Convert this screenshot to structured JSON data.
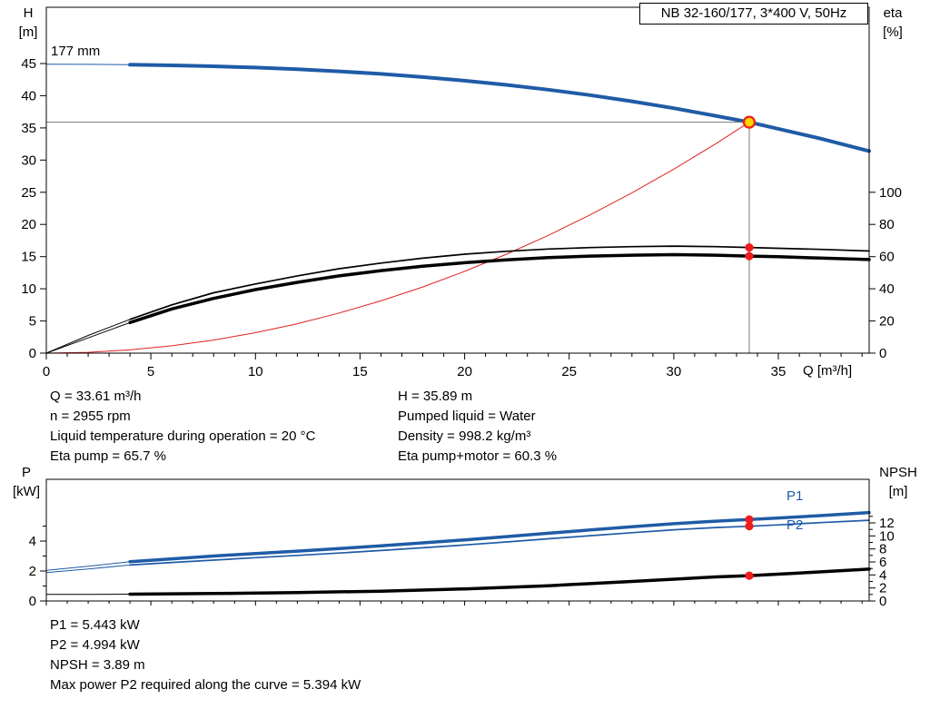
{
  "title_box": {
    "label": "NB 32-160/177, 3*400 V, 50Hz"
  },
  "colors": {
    "blue": "#1f5ba6",
    "black": "#000000",
    "red": "#e02020",
    "marker_red": "#ee1c1c",
    "duty_yellow": "#ffd500",
    "ref": "#7a7a7a",
    "border": "#000000"
  },
  "chart_data": [
    {
      "type": "line",
      "name": "head-efficiency",
      "title": "NB 32-160/177, 3*400 V, 50Hz",
      "x_axis": {
        "label": "Q [m³/h]",
        "min": 0,
        "max": 39.34,
        "ticks": [
          0,
          5,
          10,
          15,
          20,
          25,
          30,
          35
        ],
        "minor_step": 1,
        "show_labels": true
      },
      "y_left": {
        "label": "H [m]",
        "label_line1": "H",
        "label_line2": "[m]",
        "min": 0,
        "max": 45,
        "ticks": [
          0,
          5,
          10,
          15,
          20,
          25,
          30,
          35,
          40,
          45
        ]
      },
      "y_right": {
        "label": "eta [%]",
        "label_line1": "eta",
        "label_line2": "[%]",
        "min": 0,
        "max": 100,
        "ticks": [
          0,
          20,
          40,
          60,
          80,
          100
        ]
      },
      "annotations": {
        "impeller": "177 mm"
      },
      "series": [
        {
          "name": "system-curve",
          "axis": "left",
          "color": "red",
          "width": 1,
          "points": [
            [
              0,
              0
            ],
            [
              2,
              0.13
            ],
            [
              4,
              0.51
            ],
            [
              6,
              1.14
            ],
            [
              8,
              2.03
            ],
            [
              10,
              3.18
            ],
            [
              12,
              4.57
            ],
            [
              14,
              6.23
            ],
            [
              16,
              8.13
            ],
            [
              18,
              10.29
            ],
            [
              20,
              12.71
            ],
            [
              22,
              15.38
            ],
            [
              24,
              18.3
            ],
            [
              26,
              21.48
            ],
            [
              28,
              24.91
            ],
            [
              30,
              28.6
            ],
            [
              32,
              32.53
            ],
            [
              33.61,
              35.89
            ]
          ]
        },
        {
          "name": "eta-pump-curve",
          "axis": "right",
          "color": "black",
          "width": 1.7,
          "thin_until": 4,
          "points": [
            [
              0,
              0
            ],
            [
              2,
              11
            ],
            [
              4,
              21
            ],
            [
              6,
              30
            ],
            [
              8,
              37.5
            ],
            [
              10,
              43
            ],
            [
              12,
              48
            ],
            [
              14,
              52.5
            ],
            [
              16,
              56
            ],
            [
              18,
              59
            ],
            [
              20,
              61.5
            ],
            [
              22,
              63.3
            ],
            [
              24,
              64.7
            ],
            [
              26,
              65.6
            ],
            [
              28,
              66.2
            ],
            [
              30,
              66.5
            ],
            [
              32,
              66.2
            ],
            [
              33.61,
              65.7
            ],
            [
              35,
              65.2
            ],
            [
              37,
              64.5
            ],
            [
              39.34,
              63.5
            ]
          ]
        },
        {
          "name": "eta-pump-motor-curve",
          "axis": "right",
          "color": "black",
          "width": 3.5,
          "thin_until": 4,
          "points": [
            [
              0,
              0
            ],
            [
              2,
              9.5
            ],
            [
              4,
              19
            ],
            [
              6,
              27.5
            ],
            [
              8,
              34
            ],
            [
              10,
              39.5
            ],
            [
              12,
              44
            ],
            [
              14,
              48
            ],
            [
              16,
              51.3
            ],
            [
              18,
              54
            ],
            [
              20,
              56.2
            ],
            [
              22,
              58
            ],
            [
              24,
              59.4
            ],
            [
              26,
              60.3
            ],
            [
              28,
              60.9
            ],
            [
              30,
              61.2
            ],
            [
              32,
              60.9
            ],
            [
              33.61,
              60.3
            ],
            [
              35,
              59.9
            ],
            [
              37,
              59.1
            ],
            [
              39.34,
              58.2
            ]
          ]
        },
        {
          "name": "head-curve",
          "axis": "left",
          "color": "blue",
          "width": 4,
          "thin_until": 4,
          "points": [
            [
              0,
              44.9
            ],
            [
              2,
              44.87
            ],
            [
              4,
              44.81
            ],
            [
              6,
              44.72
            ],
            [
              8,
              44.58
            ],
            [
              10,
              44.38
            ],
            [
              12,
              44.12
            ],
            [
              14,
              43.79
            ],
            [
              16,
              43.39
            ],
            [
              18,
              42.9
            ],
            [
              20,
              42.34
            ],
            [
              22,
              41.69
            ],
            [
              24,
              40.94
            ],
            [
              26,
              40.09
            ],
            [
              28,
              39.13
            ],
            [
              30,
              38.06
            ],
            [
              32,
              36.87
            ],
            [
              33.61,
              35.89
            ],
            [
              35,
              34.86
            ],
            [
              37,
              33.35
            ],
            [
              39.34,
              31.4
            ]
          ]
        }
      ],
      "ref_point": {
        "x": 33.61,
        "y": 35.89
      },
      "markers": [
        {
          "x": 33.61,
          "y": 35.89,
          "axis": "left",
          "style": "duty"
        },
        {
          "x": 33.61,
          "y": 65.7,
          "axis": "right",
          "style": "dot"
        },
        {
          "x": 33.61,
          "y": 60.3,
          "axis": "right",
          "style": "dot"
        }
      ]
    },
    {
      "type": "line",
      "name": "power-npsh",
      "x_axis": {
        "label": "",
        "min": 0,
        "max": 39.34,
        "ticks": [
          0,
          5,
          10,
          15,
          20,
          25,
          30,
          35
        ],
        "minor_step": 1,
        "show_labels": false
      },
      "y_left": {
        "label": "P [kW]",
        "label_line1": "P",
        "label_line2": "[kW]",
        "min": 0,
        "max": 8.12,
        "ticks": [
          0,
          2,
          4
        ],
        "minor": [
          1,
          3,
          5
        ]
      },
      "y_right": {
        "label": "NPSH [m]",
        "label_line1": "NPSH",
        "label_line2": "[m]",
        "min": 0,
        "max": 18.7,
        "ticks": [
          0,
          2,
          4,
          6,
          8,
          10,
          12
        ],
        "minor": [
          1,
          3,
          5,
          7,
          9,
          11,
          13
        ]
      },
      "series": [
        {
          "name": "npsh-curve",
          "axis": "right",
          "color": "black",
          "width": 3.5,
          "thin_until": 4,
          "points": [
            [
              0,
              1.0
            ],
            [
              2,
              1.02
            ],
            [
              4,
              1.05
            ],
            [
              8,
              1.15
            ],
            [
              12,
              1.3
            ],
            [
              16,
              1.5
            ],
            [
              20,
              1.85
            ],
            [
              24,
              2.35
            ],
            [
              28,
              3.0
            ],
            [
              32,
              3.7
            ],
            [
              33.61,
              3.89
            ],
            [
              36,
              4.3
            ],
            [
              39.34,
              4.9
            ]
          ]
        },
        {
          "name": "p2-curve",
          "axis": "left",
          "color": "blue",
          "width": 1.7,
          "thin_until": 4,
          "points": [
            [
              0,
              1.9
            ],
            [
              2,
              2.14
            ],
            [
              4,
              2.4
            ],
            [
              6,
              2.57
            ],
            [
              8,
              2.73
            ],
            [
              10,
              2.89
            ],
            [
              12,
              3.04
            ],
            [
              14,
              3.2
            ],
            [
              16,
              3.37
            ],
            [
              18,
              3.55
            ],
            [
              20,
              3.74
            ],
            [
              22,
              3.94
            ],
            [
              24,
              4.15
            ],
            [
              26,
              4.36
            ],
            [
              28,
              4.56
            ],
            [
              30,
              4.75
            ],
            [
              32,
              4.9
            ],
            [
              33.61,
              4.99
            ],
            [
              35,
              5.08
            ],
            [
              37,
              5.23
            ],
            [
              39.34,
              5.39
            ]
          ]
        },
        {
          "name": "p1-curve",
          "axis": "left",
          "color": "blue",
          "width": 3.5,
          "thin_until": 4,
          "points": [
            [
              0,
              2.05
            ],
            [
              2,
              2.32
            ],
            [
              4,
              2.62
            ],
            [
              6,
              2.81
            ],
            [
              8,
              3.0
            ],
            [
              10,
              3.17
            ],
            [
              12,
              3.33
            ],
            [
              14,
              3.5
            ],
            [
              16,
              3.68
            ],
            [
              18,
              3.88
            ],
            [
              20,
              4.08
            ],
            [
              22,
              4.3
            ],
            [
              24,
              4.52
            ],
            [
              26,
              4.74
            ],
            [
              28,
              4.96
            ],
            [
              30,
              5.16
            ],
            [
              32,
              5.33
            ],
            [
              33.61,
              5.44
            ],
            [
              35,
              5.54
            ],
            [
              37,
              5.7
            ],
            [
              39.34,
              5.9
            ]
          ]
        }
      ],
      "series_labels": [
        {
          "text": "P1"
        },
        {
          "text": "P2"
        }
      ],
      "markers": [
        {
          "x": 33.61,
          "y": 5.443,
          "axis": "left",
          "style": "dot"
        },
        {
          "x": 33.61,
          "y": 4.994,
          "axis": "left",
          "style": "dot"
        },
        {
          "x": 33.61,
          "y": 3.89,
          "axis": "right",
          "style": "dot"
        }
      ]
    }
  ],
  "duty_panel": {
    "left": [
      "Q = 33.61 m³/h",
      "n = 2955 rpm",
      "Liquid temperature during operation = 20 °C",
      "Eta pump = 65.7 %"
    ],
    "right": [
      "H = 35.89 m",
      "Pumped liquid = Water",
      "Density = 998.2 kg/m³",
      "Eta pump+motor = 60.3 %"
    ]
  },
  "power_panel": {
    "lines": [
      "P1 = 5.443 kW",
      "P2 = 4.994 kW",
      "NPSH = 3.89 m",
      "Max power P2 required along the curve = 5.394 kW"
    ]
  }
}
